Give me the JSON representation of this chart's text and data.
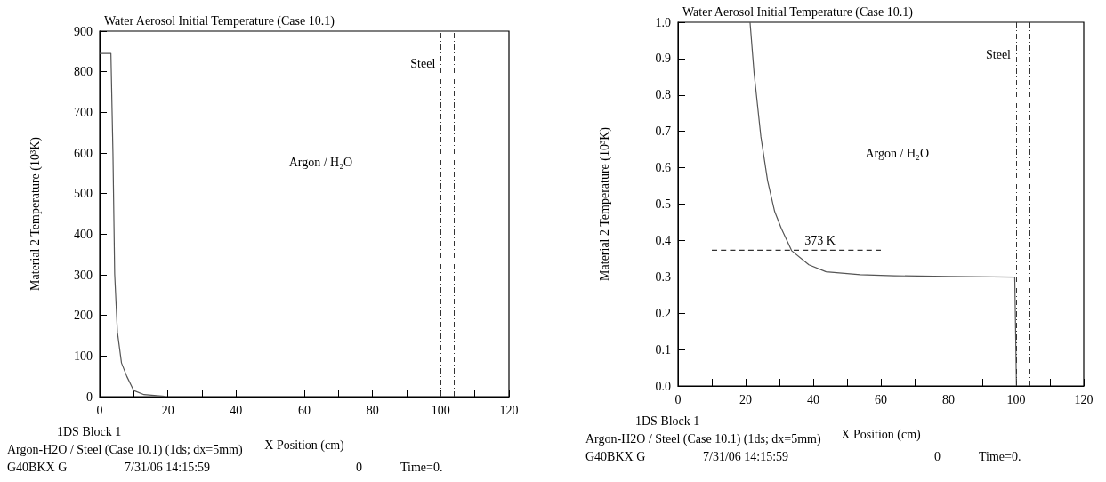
{
  "chart_data": [
    {
      "type": "line",
      "title": "Water Aerosol Initial Temperature (Case 10.1)",
      "xlabel": "X Position (cm)",
      "ylabel": "Material 2 Temperature (10³K)",
      "x": [
        0,
        3.3,
        3.4,
        3.9,
        4.4,
        5.2,
        6.4,
        8,
        10,
        13,
        19
      ],
      "series": [
        {
          "color": "#555555",
          "values": [
            845,
            845,
            845,
            598,
            302,
            159,
            83,
            49,
            15,
            5,
            1
          ]
        }
      ],
      "xlim": [
        0,
        120
      ],
      "xticks": [
        0,
        {
          "value": 10,
          "label": null
        },
        20,
        {
          "value": 30,
          "label": null
        },
        40,
        {
          "value": 50,
          "label": null
        },
        60,
        {
          "value": 70,
          "label": null
        },
        80,
        {
          "value": 90,
          "label": null
        },
        100,
        {
          "value": 110,
          "label": null
        },
        120
      ],
      "ylim": [
        0,
        900
      ],
      "yticks": [
        0,
        100,
        200,
        300,
        400,
        500,
        600,
        700,
        800,
        900
      ],
      "grid": false,
      "marker": "none",
      "line_style": "solid",
      "ref_lines": [
        {
          "axis": "x",
          "value": 100,
          "line_style": "dashed",
          "color": "#333333",
          "label": "Steel"
        },
        {
          "axis": "x",
          "value": 104,
          "line_style": "dashed",
          "color": "#333333"
        }
      ],
      "annotations": [
        "Argon / H₂O",
        "1DS Block 1",
        "Argon-H2O / Steel (Case 10.1) (1ds; dx=5mm)",
        "G40BKX G",
        "7/31/06 14:15:59",
        "0",
        "Time=0."
      ]
    },
    {
      "type": "line",
      "title": "Water Aerosol Initial Temperature (Case 10.1)",
      "xlabel": "X Position (cm)",
      "ylabel": "Material 2 Temperature (10³K)",
      "x": [
        21.3,
        22.5,
        24.5,
        26.5,
        28.6,
        30.6,
        33.6,
        38.7,
        43.8,
        53.9,
        64,
        80,
        99.6,
        100.1
      ],
      "series": [
        {
          "color": "#555555",
          "values": [
            1.0,
            0.86,
            0.686,
            0.564,
            0.479,
            0.432,
            0.372,
            0.333,
            0.314,
            0.306,
            0.303,
            0.301,
            0.299,
            0.0
          ]
        },
        {
          "color": "#333333",
          "line_style": "dashed",
          "x": [
            10,
            60
          ],
          "values": [
            0.373,
            0.373
          ]
        }
      ],
      "xlim": [
        0,
        120
      ],
      "xticks": [
        0,
        {
          "value": 10,
          "label": null
        },
        20,
        {
          "value": 30,
          "label": null
        },
        40,
        {
          "value": 50,
          "label": null
        },
        60,
        {
          "value": 70,
          "label": null
        },
        80,
        {
          "value": 90,
          "label": null
        },
        100,
        {
          "value": 110,
          "label": null
        },
        120
      ],
      "ylim": [
        0,
        1
      ],
      "yticks": [
        {
          "value": 0,
          "label": "0.0"
        },
        0.1,
        0.2,
        0.3,
        0.4,
        0.5,
        0.6,
        0.7,
        0.8,
        0.9,
        {
          "value": 1,
          "label": "1.0"
        }
      ],
      "grid": false,
      "marker": "none",
      "line_style": "solid",
      "ref_lines": [
        {
          "axis": "x",
          "value": 100,
          "line_style": "dashed",
          "color": "#333333",
          "label": "Steel"
        },
        {
          "axis": "x",
          "value": 104,
          "line_style": "dashed",
          "color": "#333333"
        }
      ],
      "annotations": [
        "Argon / H₂O",
        {
          "text": "373 K",
          "x": 42,
          "y": 0.373
        },
        "1DS Block 1",
        "Argon-H2O / Steel (Case 10.1) (1ds; dx=5mm)",
        "G40BKX G",
        "7/31/06 14:15:59",
        "0",
        "Time=0."
      ]
    }
  ]
}
